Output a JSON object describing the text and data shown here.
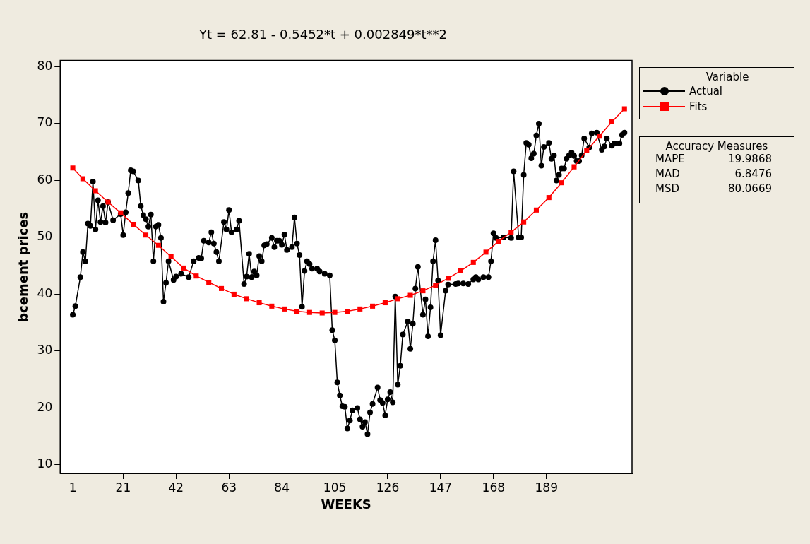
{
  "chart_data": {
    "type": "line",
    "title": "Yt = 62.81 - 0.5452*t + 0.002849*t**2",
    "xlabel": "WEEKS",
    "ylabel": "bcement prices",
    "legend_title": "Variable",
    "legend": "top right",
    "xlim": [
      -4,
      223
    ],
    "xticks": [
      1,
      21,
      42,
      63,
      84,
      105,
      126,
      147,
      168,
      189
    ],
    "ylim": [
      8.5,
      81.1
    ],
    "yticks": [
      10,
      20,
      30,
      40,
      50,
      60,
      70,
      80
    ],
    "annotations": [
      "Accuracy Measures",
      "MAPE 19.9868",
      "MAD 6.8476",
      "MSD 80.0669"
    ],
    "series": [
      {
        "name": "Actual",
        "type": "line",
        "color": "#000000",
        "marker": "circle",
        "x": [
          1,
          2,
          4,
          5,
          6,
          7,
          8,
          9,
          10,
          11,
          12,
          13,
          14,
          15,
          17,
          20,
          21,
          22,
          23,
          24,
          25,
          27,
          28,
          29,
          30,
          31,
          32,
          33,
          34,
          35,
          36,
          37,
          38,
          39,
          41,
          42,
          44,
          47,
          49,
          51,
          52,
          53,
          55,
          56,
          57,
          58,
          59,
          61,
          62,
          63,
          64,
          66,
          67,
          69,
          70,
          71,
          72,
          73,
          74,
          75,
          76,
          77,
          78,
          80,
          81,
          82,
          83,
          84,
          85,
          86,
          88,
          89,
          90,
          91,
          92,
          93,
          94,
          95,
          96,
          98,
          99,
          101,
          103,
          104,
          105,
          106,
          107,
          108,
          109,
          110,
          111,
          112,
          114,
          115,
          116,
          117,
          118,
          119,
          120,
          122,
          123,
          124,
          125,
          126,
          127,
          128,
          129,
          130,
          131,
          132,
          134,
          135,
          136,
          137,
          138,
          140,
          141,
          142,
          143,
          144,
          145,
          146,
          147,
          149,
          150,
          153,
          154,
          156,
          158,
          160,
          161,
          162,
          164,
          166,
          167,
          168,
          169,
          172,
          175,
          176,
          178,
          179,
          180,
          181,
          182,
          183,
          184,
          185,
          186,
          187,
          188,
          190,
          191,
          192,
          193,
          194,
          195,
          196,
          197,
          198,
          199,
          200,
          201,
          202,
          203,
          204,
          206,
          207,
          209,
          211,
          212,
          213,
          215,
          216,
          218,
          219,
          220
        ],
        "values": [
          36.4,
          37.9,
          43,
          47.4,
          45.8,
          52.4,
          52,
          59.8,
          51.4,
          56.5,
          52.7,
          55.5,
          52.6,
          56.2,
          53,
          54.1,
          50.4,
          54.4,
          57.8,
          61.8,
          61.6,
          60,
          55.5,
          53.9,
          53.2,
          51.9,
          54,
          45.8,
          51.9,
          52.2,
          49.9,
          38.7,
          42,
          45.8,
          42.5,
          43.1,
          43.6,
          43,
          45.8,
          46.4,
          46.3,
          49.4,
          49.1,
          50.9,
          48.9,
          47.4,
          45.8,
          52.7,
          51.4,
          54.8,
          50.9,
          51.4,
          52.9,
          41.8,
          43.1,
          47.1,
          43,
          44,
          43.3,
          46.7,
          45.8,
          48.6,
          48.8,
          49.9,
          48.3,
          49.4,
          49.4,
          48.7,
          50.5,
          47.8,
          48.3,
          53.5,
          48.9,
          46.9,
          37.8,
          44.1,
          45.8,
          45.3,
          44.5,
          44.5,
          44,
          43.6,
          43.3,
          33.7,
          31.9,
          24.5,
          22.2,
          20.3,
          20.2,
          16.4,
          17.8,
          19.6,
          20,
          18,
          16.7,
          17.5,
          15.4,
          19.2,
          20.7,
          23.6,
          21.4,
          20.9,
          18.7,
          21.5,
          22.8,
          21,
          39.6,
          24.1,
          27.4,
          32.9,
          35.2,
          30.4,
          34.8,
          41,
          44.8,
          36.4,
          39.1,
          32.6,
          37.7,
          45.8,
          49.5,
          42.4,
          32.8,
          40.6,
          41.7,
          41.8,
          41.9,
          41.9,
          41.8,
          42.6,
          43,
          42.6,
          43,
          43,
          45.8,
          50.7,
          49.9,
          50,
          49.9,
          61.6,
          50,
          50,
          61,
          66.6,
          66.3,
          63.9,
          64.7,
          67.9,
          70,
          62.6,
          65.9,
          66.6,
          63.8,
          64.4,
          60,
          61,
          62.1,
          62.1,
          63.8,
          64.4,
          64.9,
          64.3,
          63.4,
          63.4,
          64.4,
          67.4,
          65.8,
          68.3,
          68.4,
          65.4,
          66,
          67.4,
          66.1,
          66.5,
          66.5,
          68,
          68.4
        ]
      },
      {
        "name": "Fits",
        "type": "line",
        "color": "#ff0000",
        "marker": "square",
        "x": [
          1,
          5,
          10,
          15,
          20,
          25,
          30,
          35,
          40,
          45,
          50,
          55,
          60,
          65,
          70,
          75,
          80,
          85,
          90,
          95,
          100,
          105,
          110,
          115,
          120,
          125,
          130,
          135,
          140,
          145,
          150,
          155,
          160,
          165,
          170,
          175,
          180,
          185,
          190,
          195,
          200,
          205,
          210,
          215,
          220
        ],
        "values": [
          62.2,
          60.3,
          58.2,
          56.2,
          54.3,
          52.3,
          50.4,
          48.6,
          46.6,
          44.6,
          43.2,
          42.1,
          41,
          40,
          39.2,
          38.5,
          37.9,
          37.4,
          37,
          36.8,
          36.7,
          36.8,
          37,
          37.4,
          37.9,
          38.5,
          39.2,
          39.8,
          40.6,
          41.6,
          42.8,
          44.1,
          45.6,
          47.4,
          49.3,
          50.9,
          52.7,
          54.8,
          57,
          59.6,
          62.4,
          65.2,
          67.8,
          70.3,
          72.6
        ]
      }
    ]
  }
}
